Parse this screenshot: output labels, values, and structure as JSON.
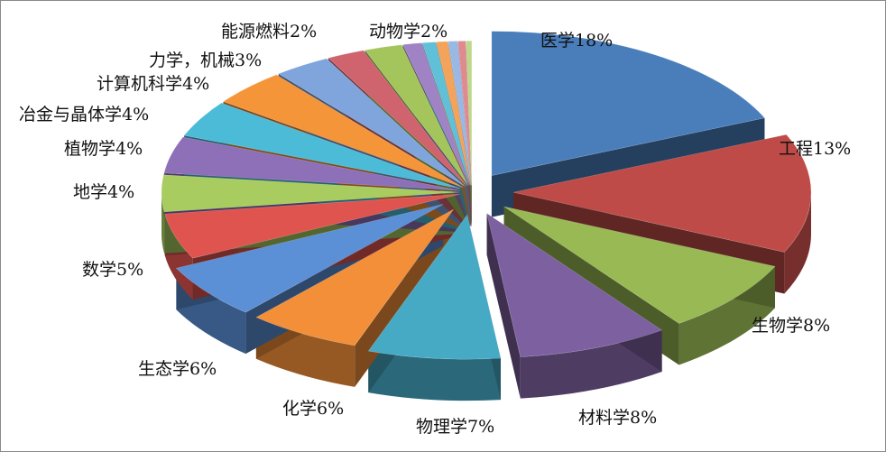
{
  "chart_data": {
    "type": "pie",
    "style": "3d-exploded",
    "slices": [
      {
        "label": "医学",
        "value": 18,
        "display": "医学18%",
        "color": "#4a7ebb"
      },
      {
        "label": "工程",
        "value": 13,
        "display": "工程13%",
        "color": "#be4b48"
      },
      {
        "label": "生物学",
        "value": 8,
        "display": "生物学8%",
        "color": "#98b954"
      },
      {
        "label": "材料学",
        "value": 8,
        "display": "材料学8%",
        "color": "#7d60a0"
      },
      {
        "label": "物理学",
        "value": 7,
        "display": "物理学7%",
        "color": "#46aac5"
      },
      {
        "label": "化学",
        "value": 6,
        "display": "化学6%",
        "color": "#f38f38"
      },
      {
        "label": "生态学",
        "value": 6,
        "display": "生态学6%",
        "color": "#5b8fd6"
      },
      {
        "label": "数学",
        "value": 5,
        "display": "数学5%",
        "color": "#e05450"
      },
      {
        "label": "地学",
        "value": 4,
        "display": "地学4%",
        "color": "#a8cc60"
      },
      {
        "label": "植物学",
        "value": 4,
        "display": "植物学4%",
        "color": "#8e70b8"
      },
      {
        "label": "冶金与晶体学",
        "value": 4,
        "display": "冶金与晶体学4%",
        "color": "#4cbbd8"
      },
      {
        "label": "计算机科学",
        "value": 4,
        "display": "计算机科学4%",
        "color": "#f5953a"
      },
      {
        "label": "力学，机械",
        "value": 3,
        "display": "力学，机械3%",
        "color": "#7fa5dc"
      },
      {
        "label": "能源燃料",
        "value": 2,
        "display": "能源燃料2%",
        "color": "#d0646e"
      },
      {
        "label": "动物学",
        "value": 2,
        "display": "动物学2%",
        "color": "#a4c45c"
      },
      {
        "label": "",
        "value": 1,
        "display": "",
        "color": "#9f83c4"
      },
      {
        "label": "",
        "value": 0.7,
        "display": "",
        "color": "#5fc0d8"
      },
      {
        "label": "",
        "value": 0.6,
        "display": "",
        "color": "#f4a35a"
      },
      {
        "label": "",
        "value": 0.5,
        "display": "",
        "color": "#9ab8e4"
      },
      {
        "label": "",
        "value": 0.4,
        "display": "",
        "color": "#e08a90"
      },
      {
        "label": "",
        "value": 0.3,
        "display": "",
        "color": "#bcd88a"
      }
    ],
    "legend": "none"
  }
}
